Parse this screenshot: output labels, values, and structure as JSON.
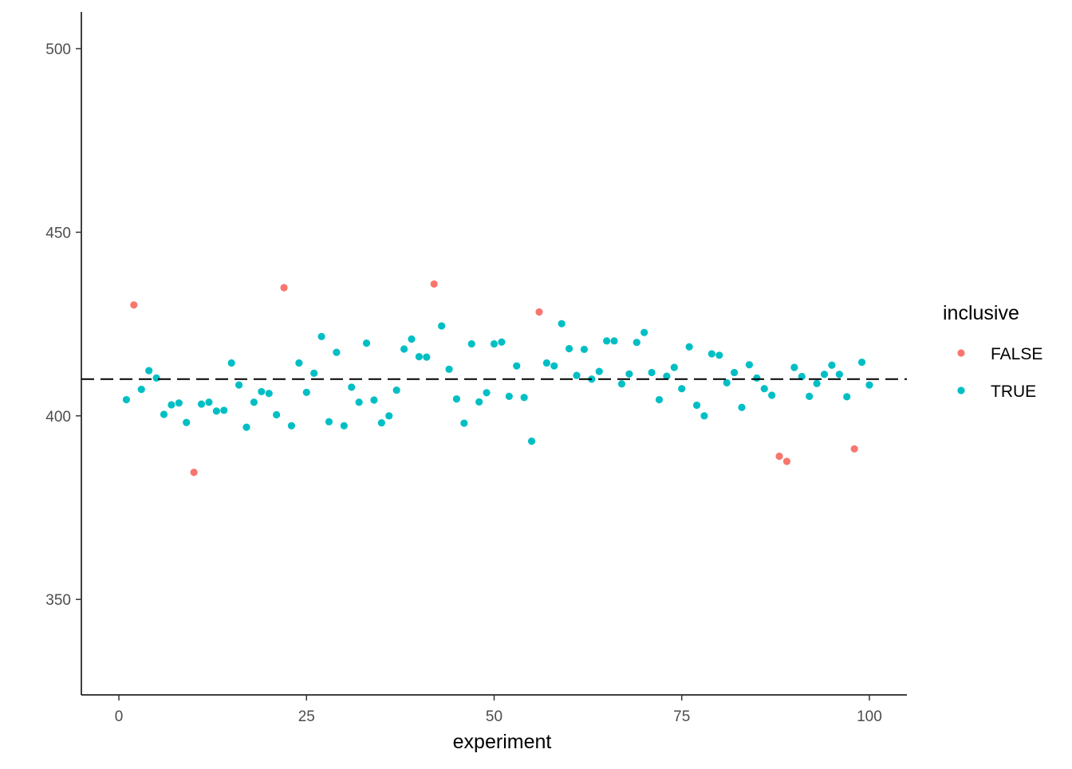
{
  "chart_data": {
    "type": "scatter",
    "title": "",
    "xlabel": "experiment",
    "ylabel": "",
    "xlim": [
      -5,
      105
    ],
    "ylim": [
      324,
      510
    ],
    "x_ticks": [
      0,
      25,
      50,
      75,
      100
    ],
    "y_ticks": [
      350,
      400,
      450,
      500
    ],
    "grid": false,
    "reference_line": {
      "y": 410,
      "style": "dashed",
      "color": "#000000"
    },
    "legend": {
      "title": "inclusive",
      "placement": "right",
      "entries": [
        {
          "label": "FALSE",
          "color": "#F8766D"
        },
        {
          "label": "TRUE",
          "color": "#00BFC4"
        }
      ]
    },
    "series": [
      {
        "name": "FALSE",
        "color": "#F8766D",
        "x": [
          2,
          10,
          22,
          42,
          56,
          88,
          89,
          98
        ],
        "y": [
          430.2,
          384.6,
          434.9,
          435.9,
          428.3,
          389.0,
          387.6,
          391.0
        ]
      },
      {
        "name": "TRUE",
        "color": "#00BFC4",
        "x": [
          1,
          3,
          4,
          5,
          6,
          7,
          8,
          9,
          11,
          12,
          13,
          14,
          15,
          16,
          17,
          18,
          19,
          20,
          21,
          23,
          24,
          25,
          26,
          27,
          28,
          29,
          30,
          31,
          32,
          33,
          34,
          35,
          36,
          37,
          38,
          39,
          40,
          41,
          43,
          44,
          45,
          46,
          47,
          48,
          49,
          50,
          51,
          52,
          53,
          54,
          55,
          57,
          58,
          59,
          60,
          61,
          62,
          63,
          64,
          65,
          66,
          67,
          68,
          69,
          70,
          71,
          72,
          73,
          74,
          75,
          76,
          77,
          78,
          79,
          80,
          81,
          82,
          83,
          84,
          85,
          86,
          87,
          90,
          91,
          92,
          93,
          94,
          95,
          96,
          97,
          99,
          100
        ],
        "y": [
          404.4,
          407.2,
          412.3,
          410.3,
          400.4,
          403.0,
          403.5,
          398.2,
          403.2,
          403.7,
          401.3,
          401.5,
          414.4,
          408.4,
          396.9,
          403.7,
          406.6,
          406.1,
          400.3,
          397.3,
          414.4,
          406.4,
          411.6,
          421.6,
          398.4,
          417.3,
          397.3,
          407.8,
          403.7,
          419.8,
          404.3,
          398.1,
          400.0,
          407.0,
          418.2,
          420.9,
          416.1,
          416.0,
          424.5,
          412.7,
          404.6,
          398.0,
          419.6,
          403.8,
          406.3,
          419.6,
          420.1,
          405.3,
          413.6,
          405.0,
          393.1,
          414.4,
          413.6,
          425.1,
          418.3,
          411.0,
          418.1,
          410.0,
          412.1,
          420.4,
          420.4,
          408.7,
          411.4,
          420.0,
          422.7,
          411.8,
          404.4,
          410.8,
          413.2,
          407.4,
          418.8,
          402.9,
          400.0,
          416.9,
          416.5,
          409.0,
          411.8,
          402.3,
          413.9,
          410.3,
          407.4,
          405.6,
          413.2,
          410.7,
          405.3,
          408.8,
          411.3,
          413.8,
          411.3,
          405.2,
          414.6,
          408.4
        ]
      }
    ]
  }
}
